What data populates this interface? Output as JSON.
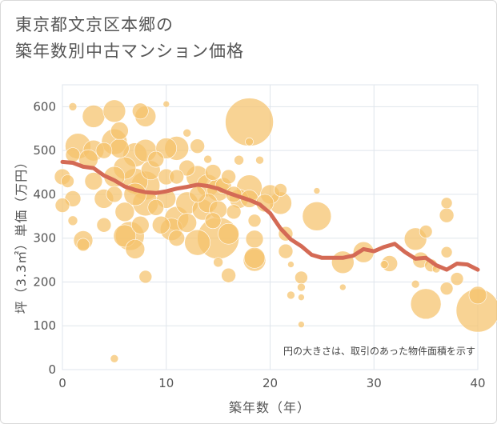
{
  "title": {
    "line1": "東京都文京区本郷の",
    "line2": "築年数別中古マンション価格"
  },
  "note": "円の大きさは、取引のあった物件面積を示す",
  "colors": {
    "bubble": "#f5c26b",
    "trend": "#d46a55",
    "grid": "#dfe5ec",
    "axis": "#555555"
  },
  "chart_data": {
    "type": "scatter",
    "xlabel": "築年数（年）",
    "ylabel": "坪（3.3㎡）単価（万円）",
    "xlim": [
      0,
      40
    ],
    "ylim": [
      0,
      650
    ],
    "xticks": [
      0,
      10,
      20,
      30,
      40
    ],
    "yticks": [
      0,
      100,
      200,
      300,
      400,
      500,
      600
    ],
    "grid": true,
    "bubbles": [
      {
        "x": 0.0,
        "y": 440,
        "s": 10
      },
      {
        "x": 0.0,
        "y": 375,
        "s": 9
      },
      {
        "x": 0.5,
        "y": 430,
        "s": 8
      },
      {
        "x": 1.0,
        "y": 600,
        "s": 5
      },
      {
        "x": 1.0,
        "y": 490,
        "s": 9
      },
      {
        "x": 1.5,
        "y": 510,
        "s": 16
      },
      {
        "x": 1.0,
        "y": 390,
        "s": 10
      },
      {
        "x": 1.0,
        "y": 340,
        "s": 6
      },
      {
        "x": 2.0,
        "y": 295,
        "s": 12
      },
      {
        "x": 2.0,
        "y": 285,
        "s": 8
      },
      {
        "x": 2.5,
        "y": 480,
        "s": 12
      },
      {
        "x": 3.0,
        "y": 578,
        "s": 14
      },
      {
        "x": 3.0,
        "y": 500,
        "s": 13
      },
      {
        "x": 3.0,
        "y": 430,
        "s": 11
      },
      {
        "x": 4.0,
        "y": 500,
        "s": 10
      },
      {
        "x": 4.0,
        "y": 390,
        "s": 12
      },
      {
        "x": 4.0,
        "y": 330,
        "s": 9
      },
      {
        "x": 5.0,
        "y": 590,
        "s": 14
      },
      {
        "x": 5.0,
        "y": 520,
        "s": 16
      },
      {
        "x": 5.0,
        "y": 440,
        "s": 13
      },
      {
        "x": 5.0,
        "y": 400,
        "s": 10
      },
      {
        "x": 5.5,
        "y": 545,
        "s": 11
      },
      {
        "x": 5.5,
        "y": 505,
        "s": 12
      },
      {
        "x": 6.0,
        "y": 460,
        "s": 14
      },
      {
        "x": 6.0,
        "y": 360,
        "s": 12
      },
      {
        "x": 6.0,
        "y": 305,
        "s": 14
      },
      {
        "x": 6.5,
        "y": 305,
        "s": 18
      },
      {
        "x": 7.0,
        "y": 490,
        "s": 15
      },
      {
        "x": 7.0,
        "y": 430,
        "s": 16
      },
      {
        "x": 7.0,
        "y": 400,
        "s": 14
      },
      {
        "x": 7.0,
        "y": 275,
        "s": 12
      },
      {
        "x": 7.5,
        "y": 590,
        "s": 10
      },
      {
        "x": 7.5,
        "y": 330,
        "s": 11
      },
      {
        "x": 8.0,
        "y": 578,
        "s": 13
      },
      {
        "x": 8.0,
        "y": 500,
        "s": 14
      },
      {
        "x": 8.0,
        "y": 420,
        "s": 18
      },
      {
        "x": 8.0,
        "y": 380,
        "s": 16
      },
      {
        "x": 8.0,
        "y": 212,
        "s": 8
      },
      {
        "x": 8.5,
        "y": 455,
        "s": 12
      },
      {
        "x": 9.0,
        "y": 480,
        "s": 10
      },
      {
        "x": 9.0,
        "y": 370,
        "s": 10
      },
      {
        "x": 9.5,
        "y": 330,
        "s": 11
      },
      {
        "x": 10.0,
        "y": 606,
        "s": 4
      },
      {
        "x": 10.0,
        "y": 505,
        "s": 13
      },
      {
        "x": 10.0,
        "y": 440,
        "s": 10
      },
      {
        "x": 10.0,
        "y": 390,
        "s": 12
      },
      {
        "x": 10.5,
        "y": 320,
        "s": 14
      },
      {
        "x": 11.0,
        "y": 505,
        "s": 15
      },
      {
        "x": 11.0,
        "y": 440,
        "s": 9
      },
      {
        "x": 11.0,
        "y": 345,
        "s": 15
      },
      {
        "x": 11.0,
        "y": 300,
        "s": 10
      },
      {
        "x": 12.0,
        "y": 540,
        "s": 5
      },
      {
        "x": 12.0,
        "y": 460,
        "s": 10
      },
      {
        "x": 12.0,
        "y": 380,
        "s": 14
      },
      {
        "x": 12.0,
        "y": 335,
        "s": 12
      },
      {
        "x": 13.0,
        "y": 510,
        "s": 9
      },
      {
        "x": 13.0,
        "y": 440,
        "s": 14
      },
      {
        "x": 13.0,
        "y": 400,
        "s": 10
      },
      {
        "x": 13.0,
        "y": 290,
        "s": 16
      },
      {
        "x": 13.5,
        "y": 365,
        "s": 13
      },
      {
        "x": 14.0,
        "y": 480,
        "s": 5
      },
      {
        "x": 14.0,
        "y": 420,
        "s": 14
      },
      {
        "x": 14.0,
        "y": 380,
        "s": 12
      },
      {
        "x": 14.5,
        "y": 450,
        "s": 10
      },
      {
        "x": 14.5,
        "y": 340,
        "s": 10
      },
      {
        "x": 15.0,
        "y": 410,
        "s": 14
      },
      {
        "x": 15.0,
        "y": 365,
        "s": 11
      },
      {
        "x": 15.0,
        "y": 300,
        "s": 26
      },
      {
        "x": 15.0,
        "y": 245,
        "s": 6
      },
      {
        "x": 15.5,
        "y": 420,
        "s": 10
      },
      {
        "x": 16.0,
        "y": 440,
        "s": 9
      },
      {
        "x": 16.0,
        "y": 310,
        "s": 13
      },
      {
        "x": 16.0,
        "y": 215,
        "s": 9
      },
      {
        "x": 16.5,
        "y": 400,
        "s": 10
      },
      {
        "x": 16.5,
        "y": 360,
        "s": 9
      },
      {
        "x": 17.0,
        "y": 478,
        "s": 6
      },
      {
        "x": 17.0,
        "y": 390,
        "s": 12
      },
      {
        "x": 18.0,
        "y": 565,
        "s": 30
      },
      {
        "x": 18.0,
        "y": 520,
        "s": 5
      },
      {
        "x": 18.0,
        "y": 415,
        "s": 16
      },
      {
        "x": 18.0,
        "y": 390,
        "s": 11
      },
      {
        "x": 18.5,
        "y": 340,
        "s": 8
      },
      {
        "x": 18.5,
        "y": 298,
        "s": 11
      },
      {
        "x": 18.5,
        "y": 255,
        "s": 13
      },
      {
        "x": 19.0,
        "y": 478,
        "s": 5
      },
      {
        "x": 18.5,
        "y": 250,
        "s": 14
      },
      {
        "x": 19.5,
        "y": 380,
        "s": 11
      },
      {
        "x": 20.0,
        "y": 400,
        "s": 12
      },
      {
        "x": 21.0,
        "y": 410,
        "s": 8
      },
      {
        "x": 21.0,
        "y": 380,
        "s": 14
      },
      {
        "x": 21.5,
        "y": 310,
        "s": 9
      },
      {
        "x": 21.5,
        "y": 270,
        "s": 9
      },
      {
        "x": 22.0,
        "y": 240,
        "s": 4
      },
      {
        "x": 22.0,
        "y": 170,
        "s": 5
      },
      {
        "x": 23.0,
        "y": 210,
        "s": 8
      },
      {
        "x": 23.0,
        "y": 188,
        "s": 5
      },
      {
        "x": 23.0,
        "y": 165,
        "s": 4
      },
      {
        "x": 23.0,
        "y": 103,
        "s": 4
      },
      {
        "x": 24.5,
        "y": 408,
        "s": 4
      },
      {
        "x": 24.5,
        "y": 350,
        "s": 18
      },
      {
        "x": 27.0,
        "y": 245,
        "s": 14
      },
      {
        "x": 27.0,
        "y": 188,
        "s": 4
      },
      {
        "x": 29.0,
        "y": 268,
        "s": 13
      },
      {
        "x": 31.0,
        "y": 240,
        "s": 5
      },
      {
        "x": 31.5,
        "y": 242,
        "s": 10
      },
      {
        "x": 34.0,
        "y": 298,
        "s": 14
      },
      {
        "x": 34.0,
        "y": 195,
        "s": 5
      },
      {
        "x": 34.5,
        "y": 250,
        "s": 10
      },
      {
        "x": 35.0,
        "y": 315,
        "s": 8
      },
      {
        "x": 35.0,
        "y": 150,
        "s": 19
      },
      {
        "x": 35.5,
        "y": 238,
        "s": 8
      },
      {
        "x": 36.0,
        "y": 230,
        "s": 5
      },
      {
        "x": 37.0,
        "y": 380,
        "s": 7
      },
      {
        "x": 37.0,
        "y": 352,
        "s": 9
      },
      {
        "x": 37.0,
        "y": 268,
        "s": 7
      },
      {
        "x": 37.0,
        "y": 185,
        "s": 8
      },
      {
        "x": 38.0,
        "y": 207,
        "s": 8
      },
      {
        "x": 40.0,
        "y": 170,
        "s": 11
      },
      {
        "x": 40.0,
        "y": 135,
        "s": 27
      },
      {
        "x": 5.0,
        "y": 25,
        "s": 5
      }
    ],
    "trend": {
      "x": [
        0,
        1,
        2,
        3,
        4,
        5,
        6,
        7,
        8,
        9,
        10,
        11,
        12,
        13,
        14,
        15,
        16,
        17,
        18,
        19,
        20,
        21,
        22,
        23,
        24,
        25,
        26,
        27,
        28,
        29,
        30,
        31,
        32,
        33,
        34,
        35,
        36,
        37,
        38,
        39,
        40
      ],
      "y": [
        474,
        472,
        463,
        460,
        443,
        432,
        418,
        410,
        405,
        403,
        407,
        413,
        417,
        422,
        419,
        413,
        403,
        395,
        387,
        377,
        357,
        322,
        297,
        282,
        262,
        255,
        255,
        255,
        260,
        275,
        270,
        280,
        287,
        268,
        253,
        255,
        238,
        228,
        242,
        240,
        228
      ]
    }
  }
}
